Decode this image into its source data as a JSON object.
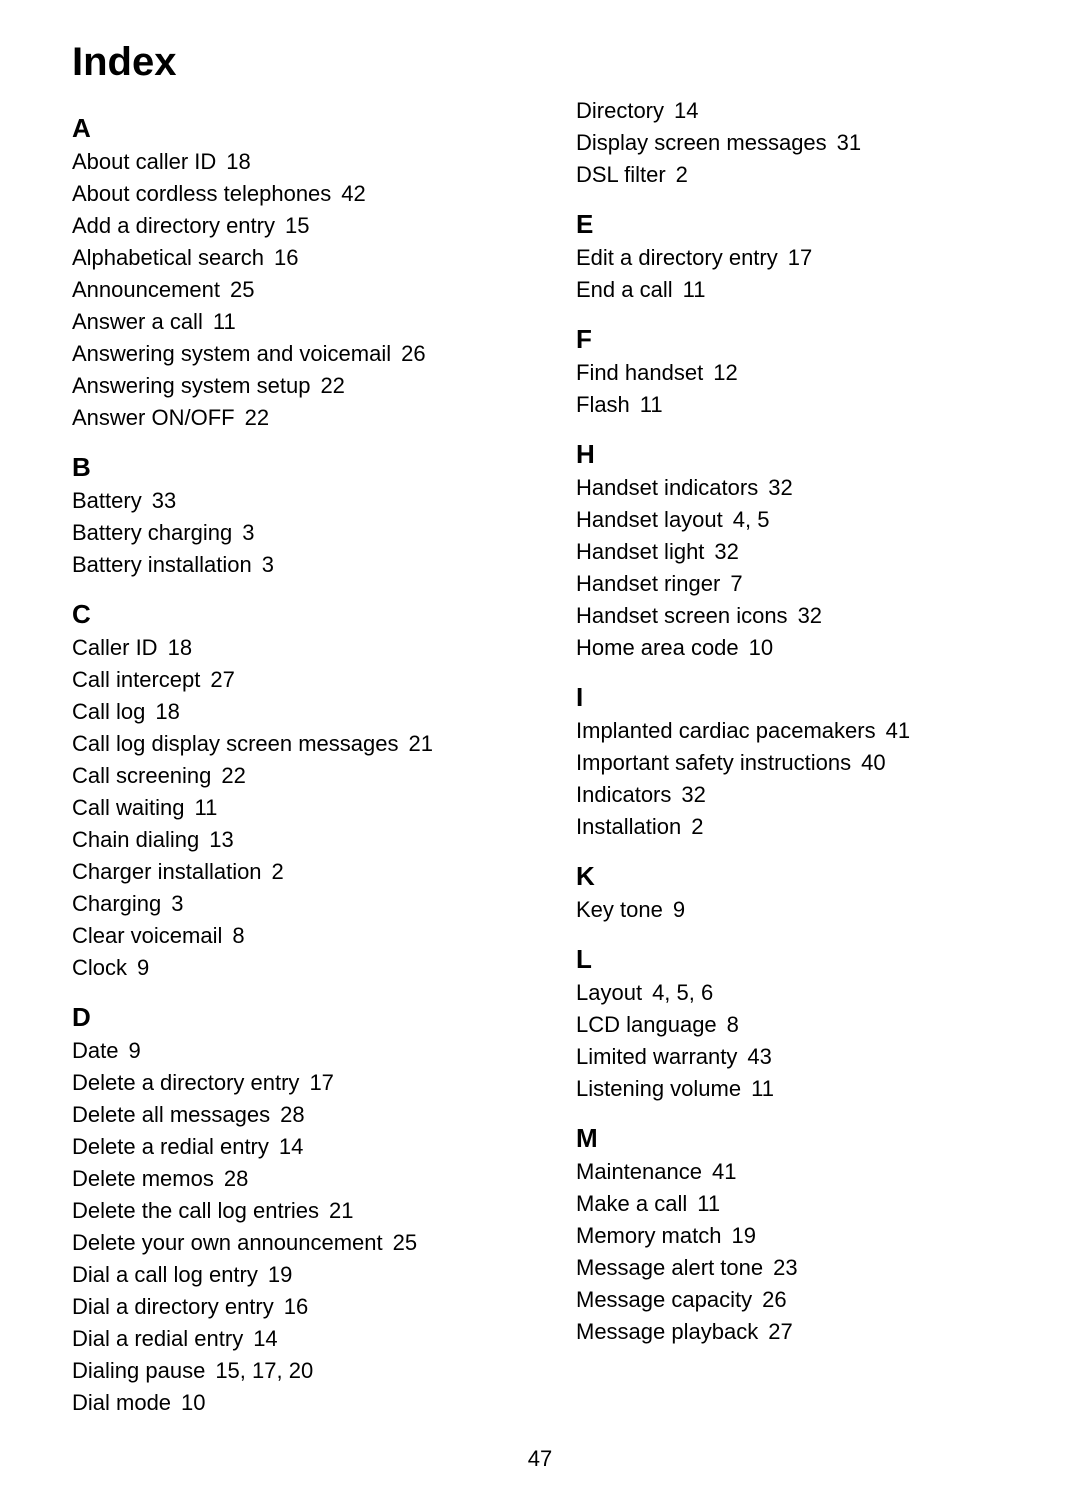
{
  "title": "Index",
  "page_number": "47",
  "colors": {
    "text": "#000000",
    "background": "#ffffff"
  },
  "typography": {
    "font_family": "Arial, Helvetica, sans-serif",
    "title_fontsize": 40,
    "letter_fontsize": 26,
    "entry_fontsize": 22,
    "line_height": 32
  },
  "columns": [
    {
      "sections": [
        {
          "letter": "A",
          "entries": [
            {
              "label": "About caller ID",
              "pages": "18"
            },
            {
              "label": "About cordless telephones",
              "pages": "42"
            },
            {
              "label": "Add a directory entry",
              "pages": "15"
            },
            {
              "label": "Alphabetical search",
              "pages": "16"
            },
            {
              "label": "Announcement",
              "pages": "25"
            },
            {
              "label": "Answer a call",
              "pages": "11"
            },
            {
              "label": "Answering system and voicemail",
              "pages": "26"
            },
            {
              "label": "Answering system setup",
              "pages": "22"
            },
            {
              "label": "Answer ON/OFF",
              "pages": "22"
            }
          ]
        },
        {
          "letter": "B",
          "entries": [
            {
              "label": "Battery",
              "pages": "33"
            },
            {
              "label": "Battery charging",
              "pages": "3"
            },
            {
              "label": "Battery installation",
              "pages": "3"
            }
          ]
        },
        {
          "letter": "C",
          "entries": [
            {
              "label": "Caller ID",
              "pages": "18"
            },
            {
              "label": "Call intercept",
              "pages": "27"
            },
            {
              "label": "Call log",
              "pages": "18"
            },
            {
              "label": "Call log display screen messages",
              "pages": "21"
            },
            {
              "label": "Call screening",
              "pages": "22"
            },
            {
              "label": "Call waiting",
              "pages": "11"
            },
            {
              "label": "Chain dialing",
              "pages": "13"
            },
            {
              "label": "Charger installation",
              "pages": "2"
            },
            {
              "label": "Charging",
              "pages": "3"
            },
            {
              "label": "Clear voicemail",
              "pages": "8"
            },
            {
              "label": "Clock",
              "pages": "9"
            }
          ]
        },
        {
          "letter": "D",
          "entries": [
            {
              "label": "Date",
              "pages": "9"
            },
            {
              "label": "Delete a directory entry",
              "pages": "17"
            },
            {
              "label": "Delete all messages",
              "pages": "28"
            },
            {
              "label": "Delete a redial entry",
              "pages": "14"
            },
            {
              "label": "Delete memos",
              "pages": "28"
            },
            {
              "label": "Delete the call log entries",
              "pages": "21"
            },
            {
              "label": "Delete your own announcement",
              "pages": "25"
            },
            {
              "label": "Dial a call log entry",
              "pages": "19"
            },
            {
              "label": "Dial a directory entry",
              "pages": "16"
            },
            {
              "label": "Dial a redial entry",
              "pages": "14"
            },
            {
              "label": "Dialing pause",
              "pages": "15, 17, 20"
            },
            {
              "label": "Dial mode",
              "pages": "10"
            }
          ]
        }
      ]
    },
    {
      "sections": [
        {
          "letter": "",
          "entries": [
            {
              "label": "Directory",
              "pages": "14"
            },
            {
              "label": "Display screen messages",
              "pages": "31"
            },
            {
              "label": "DSL filter",
              "pages": "2"
            }
          ]
        },
        {
          "letter": "E",
          "entries": [
            {
              "label": "Edit a directory entry",
              "pages": "17"
            },
            {
              "label": "End a call",
              "pages": "11"
            }
          ]
        },
        {
          "letter": "F",
          "entries": [
            {
              "label": "Find handset",
              "pages": "12"
            },
            {
              "label": "Flash",
              "pages": "11"
            }
          ]
        },
        {
          "letter": "H",
          "entries": [
            {
              "label": "Handset indicators",
              "pages": "32"
            },
            {
              "label": "Handset layout",
              "pages": "4, 5"
            },
            {
              "label": "Handset light",
              "pages": "32"
            },
            {
              "label": "Handset ringer",
              "pages": "7"
            },
            {
              "label": "Handset screen icons",
              "pages": "32"
            },
            {
              "label": "Home area code",
              "pages": "10"
            }
          ]
        },
        {
          "letter": "I",
          "entries": [
            {
              "label": "Implanted cardiac pacemakers",
              "pages": "41"
            },
            {
              "label": "Important safety instructions",
              "pages": "40"
            },
            {
              "label": "Indicators",
              "pages": "32"
            },
            {
              "label": "Installation",
              "pages": "2"
            }
          ]
        },
        {
          "letter": "K",
          "entries": [
            {
              "label": "Key tone",
              "pages": "9"
            }
          ]
        },
        {
          "letter": "L",
          "entries": [
            {
              "label": "Layout",
              "pages": "4, 5, 6"
            },
            {
              "label": "LCD language",
              "pages": "8"
            },
            {
              "label": "Limited warranty",
              "pages": "43"
            },
            {
              "label": "Listening volume",
              "pages": "11"
            }
          ]
        },
        {
          "letter": "M",
          "entries": [
            {
              "label": "Maintenance",
              "pages": "41"
            },
            {
              "label": "Make a call",
              "pages": "11"
            },
            {
              "label": "Memory match",
              "pages": "19"
            },
            {
              "label": "Message alert tone",
              "pages": "23"
            },
            {
              "label": "Message capacity",
              "pages": "26"
            },
            {
              "label": "Message playback",
              "pages": "27"
            }
          ]
        }
      ]
    }
  ]
}
